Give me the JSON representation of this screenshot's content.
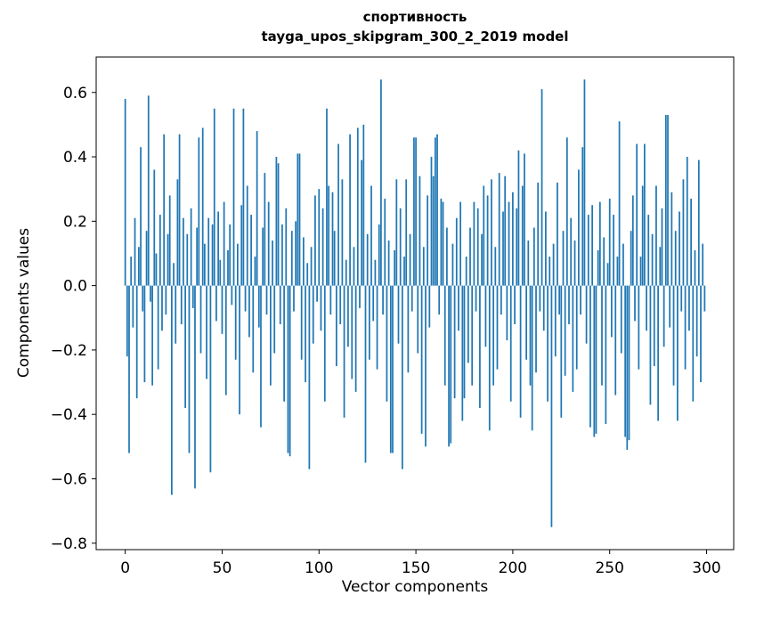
{
  "chart_data": {
    "type": "bar",
    "title": "спортивность",
    "subtitle": "tayga_upos_skipgram_300_2_2019 model",
    "xlabel": "Vector components",
    "ylabel": "Components values",
    "xlim": [
      -15,
      314
    ],
    "ylim": [
      -0.82,
      0.71
    ],
    "xticks": [
      0,
      50,
      100,
      150,
      200,
      250,
      300
    ],
    "xtick_labels": [
      "0",
      "50",
      "100",
      "150",
      "200",
      "250",
      "300"
    ],
    "yticks": [
      -0.8,
      -0.6,
      -0.4,
      -0.2,
      0,
      0.2,
      0.4,
      0.6
    ],
    "ytick_labels": [
      "−0.8",
      "−0.6",
      "−0.4",
      "−0.2",
      "0.0",
      "0.2",
      "0.4",
      "0.6"
    ],
    "bar_color": "#1f77b4",
    "bar_width": 0.8,
    "n_components": 300,
    "grid": false,
    "legend": "none",
    "values": [
      0.58,
      -0.22,
      -0.52,
      0.09,
      -0.13,
      0.21,
      -0.35,
      0.12,
      0.43,
      -0.08,
      -0.3,
      0.17,
      0.59,
      -0.05,
      -0.31,
      0.36,
      0.1,
      -0.26,
      0.22,
      -0.14,
      0.47,
      -0.09,
      0.16,
      0.28,
      -0.65,
      0.07,
      -0.18,
      0.33,
      0.47,
      -0.12,
      0.21,
      -0.38,
      0.16,
      -0.52,
      0.24,
      -0.07,
      -0.63,
      0.18,
      0.46,
      -0.21,
      0.49,
      0.13,
      -0.29,
      0.21,
      -0.58,
      0.19,
      0.55,
      -0.11,
      0.23,
      0.08,
      -0.15,
      0.26,
      -0.34,
      0.11,
      0.19,
      -0.06,
      0.55,
      -0.23,
      0.13,
      -0.4,
      0.25,
      0.55,
      -0.08,
      0.31,
      -0.16,
      0.22,
      -0.27,
      0.09,
      0.48,
      -0.13,
      -0.44,
      0.18,
      0.35,
      -0.09,
      0.26,
      -0.31,
      0.14,
      -0.21,
      0.4,
      0.38,
      -0.12,
      0.19,
      -0.36,
      0.24,
      -0.52,
      -0.53,
      0.17,
      -0.08,
      0.2,
      0.41,
      0.41,
      -0.23,
      0.15,
      -0.3,
      0.07,
      -0.57,
      0.12,
      -0.18,
      0.28,
      -0.05,
      0.3,
      -0.14,
      0.24,
      -0.36,
      0.55,
      0.31,
      -0.09,
      0.29,
      0.17,
      -0.25,
      0.44,
      -0.12,
      0.33,
      -0.41,
      0.08,
      -0.19,
      0.47,
      -0.29,
      0.12,
      -0.33,
      0.49,
      -0.07,
      0.39,
      0.5,
      -0.55,
      0.16,
      -0.23,
      0.31,
      -0.11,
      0.08,
      -0.26,
      0.19,
      0.64,
      -0.09,
      0.27,
      -0.36,
      0.14,
      -0.52,
      -0.52,
      0.11,
      0.33,
      -0.18,
      0.24,
      -0.57,
      0.09,
      0.33,
      -0.27,
      0.16,
      -0.08,
      0.46,
      0.46,
      -0.21,
      0.34,
      -0.46,
      0.12,
      -0.5,
      0.28,
      -0.13,
      0.4,
      0.34,
      0.46,
      0.47,
      -0.09,
      0.27,
      0.26,
      -0.31,
      0.18,
      -0.5,
      -0.49,
      0.13,
      -0.35,
      0.21,
      -0.14,
      0.26,
      -0.42,
      -0.35,
      0.09,
      -0.24,
      0.18,
      -0.31,
      0.26,
      -0.08,
      0.24,
      -0.38,
      0.16,
      0.31,
      -0.19,
      0.28,
      -0.45,
      0.33,
      -0.31,
      0.12,
      -0.26,
      0.35,
      -0.09,
      0.23,
      0.34,
      -0.17,
      0.26,
      -0.36,
      0.29,
      -0.12,
      0.24,
      0.42,
      -0.41,
      0.31,
      0.41,
      -0.23,
      0.14,
      -0.31,
      -0.45,
      0.18,
      -0.27,
      0.32,
      -0.08,
      0.61,
      -0.14,
      0.23,
      -0.36,
      0.09,
      -0.75,
      0.13,
      -0.22,
      0.32,
      -0.09,
      -0.41,
      0.17,
      -0.28,
      0.46,
      -0.12,
      0.21,
      -0.33,
      0.14,
      -0.26,
      0.36,
      -0.09,
      0.43,
      0.64,
      -0.18,
      0.22,
      -0.44,
      0.25,
      -0.47,
      -0.46,
      0.11,
      0.26,
      -0.31,
      0.15,
      -0.43,
      0.07,
      0.27,
      -0.16,
      0.22,
      -0.34,
      0.09,
      0.51,
      -0.21,
      0.13,
      -0.47,
      -0.51,
      -0.48,
      0.17,
      0.28,
      -0.11,
      0.44,
      -0.26,
      0.09,
      0.31,
      0.44,
      -0.14,
      0.22,
      -0.37,
      0.16,
      -0.25,
      0.31,
      -0.42,
      0.12,
      0.24,
      -0.19,
      0.53,
      0.53,
      -0.13,
      0.29,
      -0.31,
      0.17,
      -0.42,
      0.23,
      -0.08,
      0.33,
      -0.26,
      0.4,
      -0.14,
      0.27,
      -0.36,
      0.11,
      -0.22,
      0.39,
      -0.3,
      0.13,
      -0.08
    ]
  }
}
